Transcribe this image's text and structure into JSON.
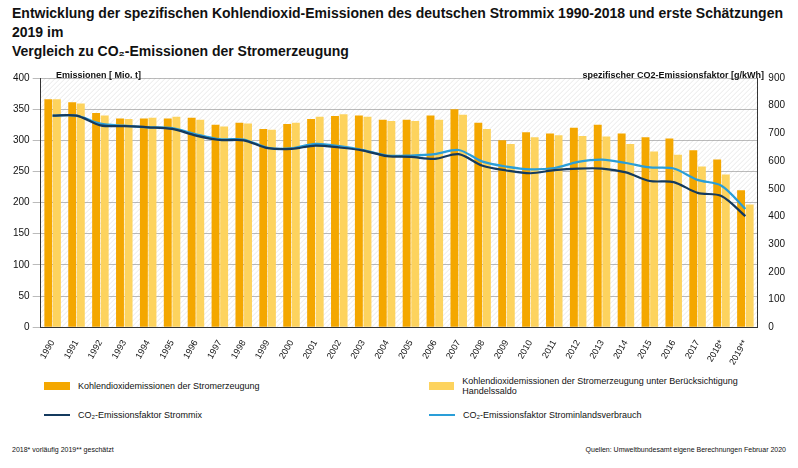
{
  "chart_data": {
    "type": "bar",
    "title": "Entwicklung der spezifischen Kohlendioxid-Emissionen des deutschen Strommix 1990-2018 und erste Schätzungen 2019 im\nVergleich zu CO₂-Emissionen der Stromerzeugung",
    "y_label": "Emissionen [ Mio. t]",
    "y2_label": "spezifischer CO2-Emissionsfaktor [g/kWh]",
    "footnote": "2018* vorläufig   2019** geschätzt",
    "source": "Quellen: Umweltbundesamt  eigene Berechnungen Februar 2020",
    "categories": [
      "1990",
      "1991",
      "1992",
      "1993",
      "1994",
      "1995",
      "1996",
      "1997",
      "1998",
      "1999",
      "2000",
      "2001",
      "2002",
      "2003",
      "2004",
      "2005",
      "2006",
      "2007",
      "2008",
      "2009",
      "2010",
      "2011",
      "2012",
      "2013",
      "2014",
      "2015",
      "2016",
      "2017",
      "2018*",
      "2019**"
    ],
    "series": [
      {
        "name": "Kohlendioxidemissionen der Stromerzeugung",
        "type": "bar",
        "color": "#f4a700",
        "values": [
          366,
          361,
          344,
          335,
          335,
          335,
          336,
          325,
          328,
          318,
          326,
          334,
          339,
          340,
          333,
          333,
          340,
          350,
          328,
          300,
          313,
          311,
          320,
          325,
          311,
          305,
          303,
          284,
          269,
          220
        ]
      },
      {
        "name": "Kohlendioxidemissionen der Stromerzeugung unter Berücksichtigung Handelssaldo",
        "type": "bar",
        "color": "#fdd35e",
        "values": [
          366,
          359,
          340,
          334,
          336,
          338,
          333,
          322,
          327,
          317,
          328,
          338,
          342,
          338,
          331,
          331,
          333,
          341,
          318,
          294,
          305,
          308,
          307,
          306,
          294,
          282,
          277,
          258,
          245,
          197
        ]
      },
      {
        "name": "CO₂-Emissionsfaktor Strommix",
        "type": "line",
        "axis": "y2",
        "color": "#143a5e",
        "marker": "none",
        "line_style": "solid",
        "values": [
          764,
          764,
          729,
          726,
          722,
          716,
          692,
          676,
          675,
          647,
          644,
          656,
          649,
          638,
          618,
          615,
          608,
          625,
          583,
          566,
          556,
          567,
          573,
          573,
          559,
          528,
          524,
          485,
          474,
          401
        ]
      },
      {
        "name": "CO₂-Emissionsfaktor Strominlandsverbrauch",
        "type": "line",
        "axis": "y2",
        "color": "#2a9ed8",
        "marker": "none",
        "line_style": "solid",
        "values": [
          764,
          764,
          735,
          728,
          722,
          719,
          697,
          679,
          678,
          648,
          646,
          662,
          654,
          640,
          620,
          620,
          625,
          640,
          598,
          580,
          570,
          575,
          597,
          605,
          593,
          577,
          573,
          532,
          511,
          427
        ]
      }
    ],
    "ylim": [
      0,
      400
    ],
    "yticks": [
      0,
      50,
      100,
      150,
      200,
      250,
      300,
      350,
      400
    ],
    "y2lim": [
      0,
      900
    ],
    "y2ticks": [
      0,
      100,
      200,
      300,
      400,
      500,
      600,
      700,
      800,
      900
    ],
    "grid": true,
    "legend": "bottom"
  }
}
